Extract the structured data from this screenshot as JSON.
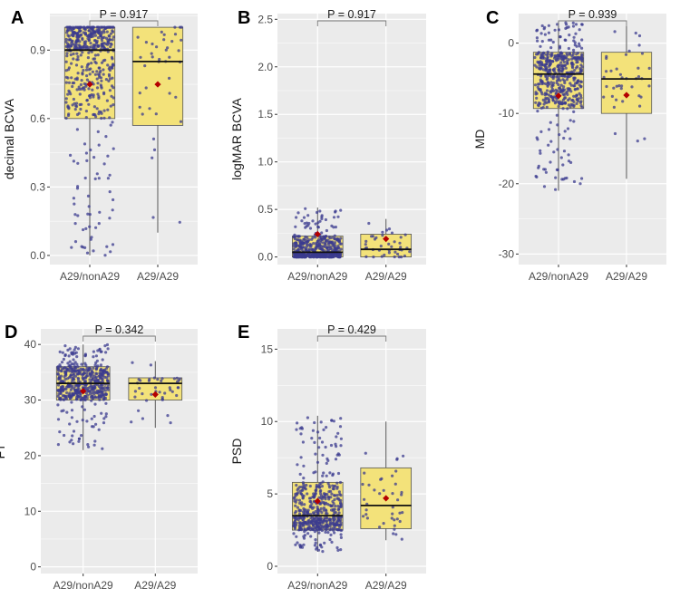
{
  "chart_data": [
    {
      "panel": "A",
      "type": "boxplot",
      "ylabel": "decimal BCVA",
      "categories": [
        "A29/nonA29",
        "A29/A29"
      ],
      "yticks": [
        0.0,
        0.3,
        0.6,
        0.9
      ],
      "ylim": [
        -0.04,
        1.06
      ],
      "pvalue": "P = 0.917",
      "boxes": [
        {
          "q1": 0.6,
          "median": 0.9,
          "q3": 1.0,
          "whisker_low": 0.0,
          "whisker_high": 1.0,
          "mean": 0.75,
          "n": 500
        },
        {
          "q1": 0.57,
          "median": 0.85,
          "q3": 1.0,
          "whisker_low": 0.1,
          "whisker_high": 1.0,
          "mean": 0.75,
          "n": 40
        }
      ]
    },
    {
      "panel": "B",
      "type": "boxplot",
      "ylabel": "logMAR BCVA",
      "categories": [
        "A29/nonA29",
        "A29/A29"
      ],
      "yticks": [
        0.0,
        0.5,
        1.0,
        1.5,
        2.0,
        2.5
      ],
      "ylim": [
        -0.08,
        2.56
      ],
      "pvalue": "P = 0.917",
      "boxes": [
        {
          "q1": 0.0,
          "median": 0.05,
          "q3": 0.22,
          "whisker_low": 0.0,
          "whisker_high": 0.52,
          "mean": 0.24,
          "n": 500
        },
        {
          "q1": 0.0,
          "median": 0.08,
          "q3": 0.24,
          "whisker_low": 0.0,
          "whisker_high": 0.4,
          "mean": 0.19,
          "n": 40
        }
      ]
    },
    {
      "panel": "C",
      "type": "boxplot",
      "ylabel": "MD",
      "categories": [
        "A29/nonA29",
        "A29/A29"
      ],
      "yticks": [
        -30,
        -20,
        -10,
        0
      ],
      "ylim": [
        -31.5,
        4.2
      ],
      "pvalue": "P = 0.939",
      "boxes": [
        {
          "q1": -9.3,
          "median": -4.4,
          "q3": -1.3,
          "whisker_low": -21.0,
          "whisker_high": 3.0,
          "mean": -7.5,
          "n": 500
        },
        {
          "q1": -10.0,
          "median": -5.1,
          "q3": -1.3,
          "whisker_low": -19.3,
          "whisker_high": 2.4,
          "mean": -7.4,
          "n": 40
        }
      ]
    },
    {
      "panel": "D",
      "type": "boxplot",
      "ylabel": "FT",
      "categories": [
        "A29/nonA29",
        "A29/A29"
      ],
      "yticks": [
        0,
        10,
        20,
        30,
        40
      ],
      "ylim": [
        -1.2,
        42.8
      ],
      "pvalue": "P = 0.342",
      "boxes": [
        {
          "q1": 30,
          "median": 33,
          "q3": 36,
          "whisker_low": 21,
          "whisker_high": 40,
          "mean": 31.6,
          "n": 500
        },
        {
          "q1": 30,
          "median": 33,
          "q3": 34,
          "whisker_low": 25,
          "whisker_high": 37,
          "mean": 31.0,
          "n": 40
        }
      ]
    },
    {
      "panel": "E",
      "type": "boxplot",
      "ylabel": "PSD",
      "categories": [
        "A29/nonA29",
        "A29/A29"
      ],
      "yticks": [
        0,
        5,
        10,
        15
      ],
      "ylim": [
        -0.5,
        16.4
      ],
      "pvalue": "P = 0.429",
      "boxes": [
        {
          "q1": 2.5,
          "median": 3.5,
          "q3": 5.8,
          "whisker_low": 1.0,
          "whisker_high": 10.4,
          "mean": 4.5,
          "n": 500
        },
        {
          "q1": 2.6,
          "median": 4.2,
          "q3": 6.8,
          "whisker_low": 1.8,
          "whisker_high": 10.0,
          "mean": 4.7,
          "n": 40
        }
      ]
    }
  ],
  "colors": {
    "panel_bg": "#ebebeb",
    "grid": "#ffffff",
    "box_fill": "#f3e27a",
    "box_stroke": "#555555",
    "points": "#3b3b8f",
    "mean_marker": "#b40000"
  }
}
